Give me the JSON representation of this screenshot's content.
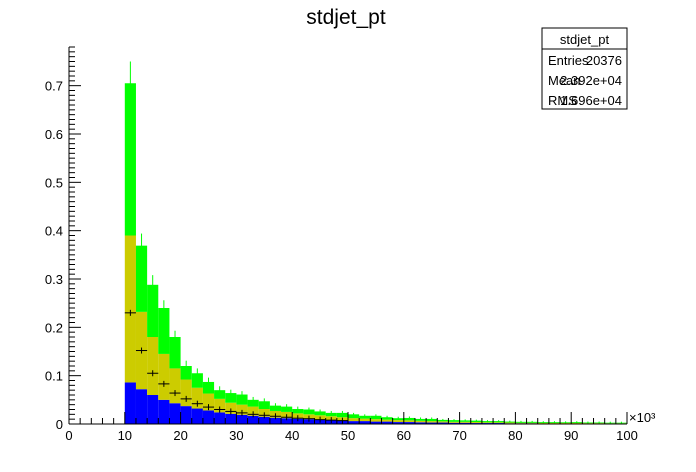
{
  "chart_data": {
    "type": "bar",
    "stacked": true,
    "title": "stdjet_pt",
    "xlabel": "",
    "ylabel": "",
    "x_multiplier_label": "×10³",
    "xlim": [
      0,
      100
    ],
    "ylim": [
      0,
      0.78
    ],
    "x_ticks": [
      0,
      10,
      20,
      30,
      40,
      50,
      60,
      70,
      80,
      90,
      100
    ],
    "y_ticks": [
      0,
      0.1,
      0.2,
      0.3,
      0.4,
      0.5,
      0.6,
      0.7
    ],
    "y_tick_labels": [
      "0",
      "0.1",
      "0.2",
      "0.3",
      "0.4",
      "0.5",
      "0.6",
      "0.7"
    ],
    "grid": false,
    "bin_width": 2,
    "bin_starts": [
      0,
      2,
      4,
      6,
      8,
      10,
      12,
      14,
      16,
      18,
      20,
      22,
      24,
      26,
      28,
      30,
      32,
      34,
      36,
      38,
      40,
      42,
      44,
      46,
      48,
      50,
      52,
      54,
      56,
      58,
      60,
      62,
      64,
      66,
      68,
      70,
      72,
      74,
      76,
      78,
      80,
      82,
      84,
      86,
      88,
      90,
      92,
      94,
      96,
      98
    ],
    "series": [
      {
        "color": "#0000ff",
        "values": [
          0,
          0,
          0,
          0,
          0,
          0.086,
          0.072,
          0.06,
          0.05,
          0.043,
          0.037,
          0.032,
          0.028,
          0.024,
          0.021,
          0.019,
          0.017,
          0.015,
          0.013,
          0.012,
          0.011,
          0.01,
          0.009,
          0.008,
          0.007,
          0.006,
          0.006,
          0.005,
          0.005,
          0.004,
          0.004,
          0.0035,
          0.003,
          0.003,
          0.0025,
          0.0025,
          0.002,
          0.002,
          0.002,
          0.0015,
          0.0015,
          0.0015,
          0.001,
          0.001,
          0.001,
          0.001,
          0.001,
          0.001,
          0.0008,
          0.0008
        ]
      },
      {
        "color": "#cccc00",
        "values": [
          0,
          0,
          0,
          0,
          0,
          0.304,
          0.16,
          0.12,
          0.095,
          0.072,
          0.055,
          0.043,
          0.035,
          0.028,
          0.023,
          0.021,
          0.019,
          0.016,
          0.014,
          0.013,
          0.011,
          0.01,
          0.009,
          0.008,
          0.007,
          0.006,
          0.005,
          0.005,
          0.004,
          0.004,
          0.0035,
          0.003,
          0.003,
          0.0025,
          0.002,
          0.002,
          0.002,
          0.0015,
          0.0015,
          0.0015,
          0.001,
          0.001,
          0.001,
          0.001,
          0.001,
          0.001,
          0.0008,
          0.0008,
          0.0007,
          0.0007
        ]
      },
      {
        "color": "#00ff00",
        "values": [
          0,
          0,
          0,
          0,
          0,
          0.315,
          0.137,
          0.108,
          0.095,
          0.065,
          0.028,
          0.03,
          0.024,
          0.018,
          0.02,
          0.021,
          0.014,
          0.016,
          0.011,
          0.011,
          0.009,
          0.01,
          0.008,
          0.007,
          0.009,
          0.008,
          0.006,
          0.007,
          0.005,
          0.004,
          0.005,
          0.004,
          0.0045,
          0.003,
          0.0035,
          0.003,
          0.003,
          0.0025,
          0.0025,
          0.002,
          0.002,
          0.002,
          0.0018,
          0.0018,
          0.0015,
          0.0018,
          0.0013,
          0.0013,
          0.0012,
          0.0012
        ]
      }
    ],
    "errors": [
      0,
      0,
      0,
      0,
      0,
      0.045,
      0.025,
      0.02,
      0.016,
      0.013,
      0.011,
      0.01,
      0.009,
      0.008,
      0.007,
      0.007,
      0.006,
      0.006,
      0.005,
      0.005,
      0.005,
      0.004,
      0.004,
      0.004,
      0.004,
      0.003,
      0.003,
      0.003,
      0.003,
      0.003,
      0.003,
      0.003,
      0.003,
      0.002,
      0.002,
      0.002,
      0.002,
      0.002,
      0.002,
      0.002,
      0.002,
      0.002,
      0.002,
      0.002,
      0.002,
      0.002,
      0.002,
      0.002,
      0.002,
      0.002
    ],
    "markers": [
      {
        "x": 11,
        "y": 0.23
      },
      {
        "x": 13,
        "y": 0.152
      },
      {
        "x": 15,
        "y": 0.105
      },
      {
        "x": 17,
        "y": 0.083
      },
      {
        "x": 19,
        "y": 0.064
      },
      {
        "x": 21,
        "y": 0.052
      },
      {
        "x": 23,
        "y": 0.042
      },
      {
        "x": 25,
        "y": 0.035
      },
      {
        "x": 27,
        "y": 0.03
      },
      {
        "x": 29,
        "y": 0.026
      },
      {
        "x": 31,
        "y": 0.023
      },
      {
        "x": 33,
        "y": 0.02
      },
      {
        "x": 35,
        "y": 0.018
      },
      {
        "x": 37,
        "y": 0.016
      },
      {
        "x": 39,
        "y": 0.014
      },
      {
        "x": 41,
        "y": 0.012
      },
      {
        "x": 43,
        "y": 0.011
      },
      {
        "x": 45,
        "y": 0.009
      },
      {
        "x": 47,
        "y": 0.008
      },
      {
        "x": 49,
        "y": 0.007
      }
    ],
    "legend": {
      "title": "stdjet_pt",
      "placement": "top-right",
      "rows": [
        {
          "label": "Entries",
          "value": "20376"
        },
        {
          "label": "Mean",
          "value": "2.392e+04"
        },
        {
          "label": "RMS",
          "value": "1.696e+04"
        }
      ]
    }
  }
}
